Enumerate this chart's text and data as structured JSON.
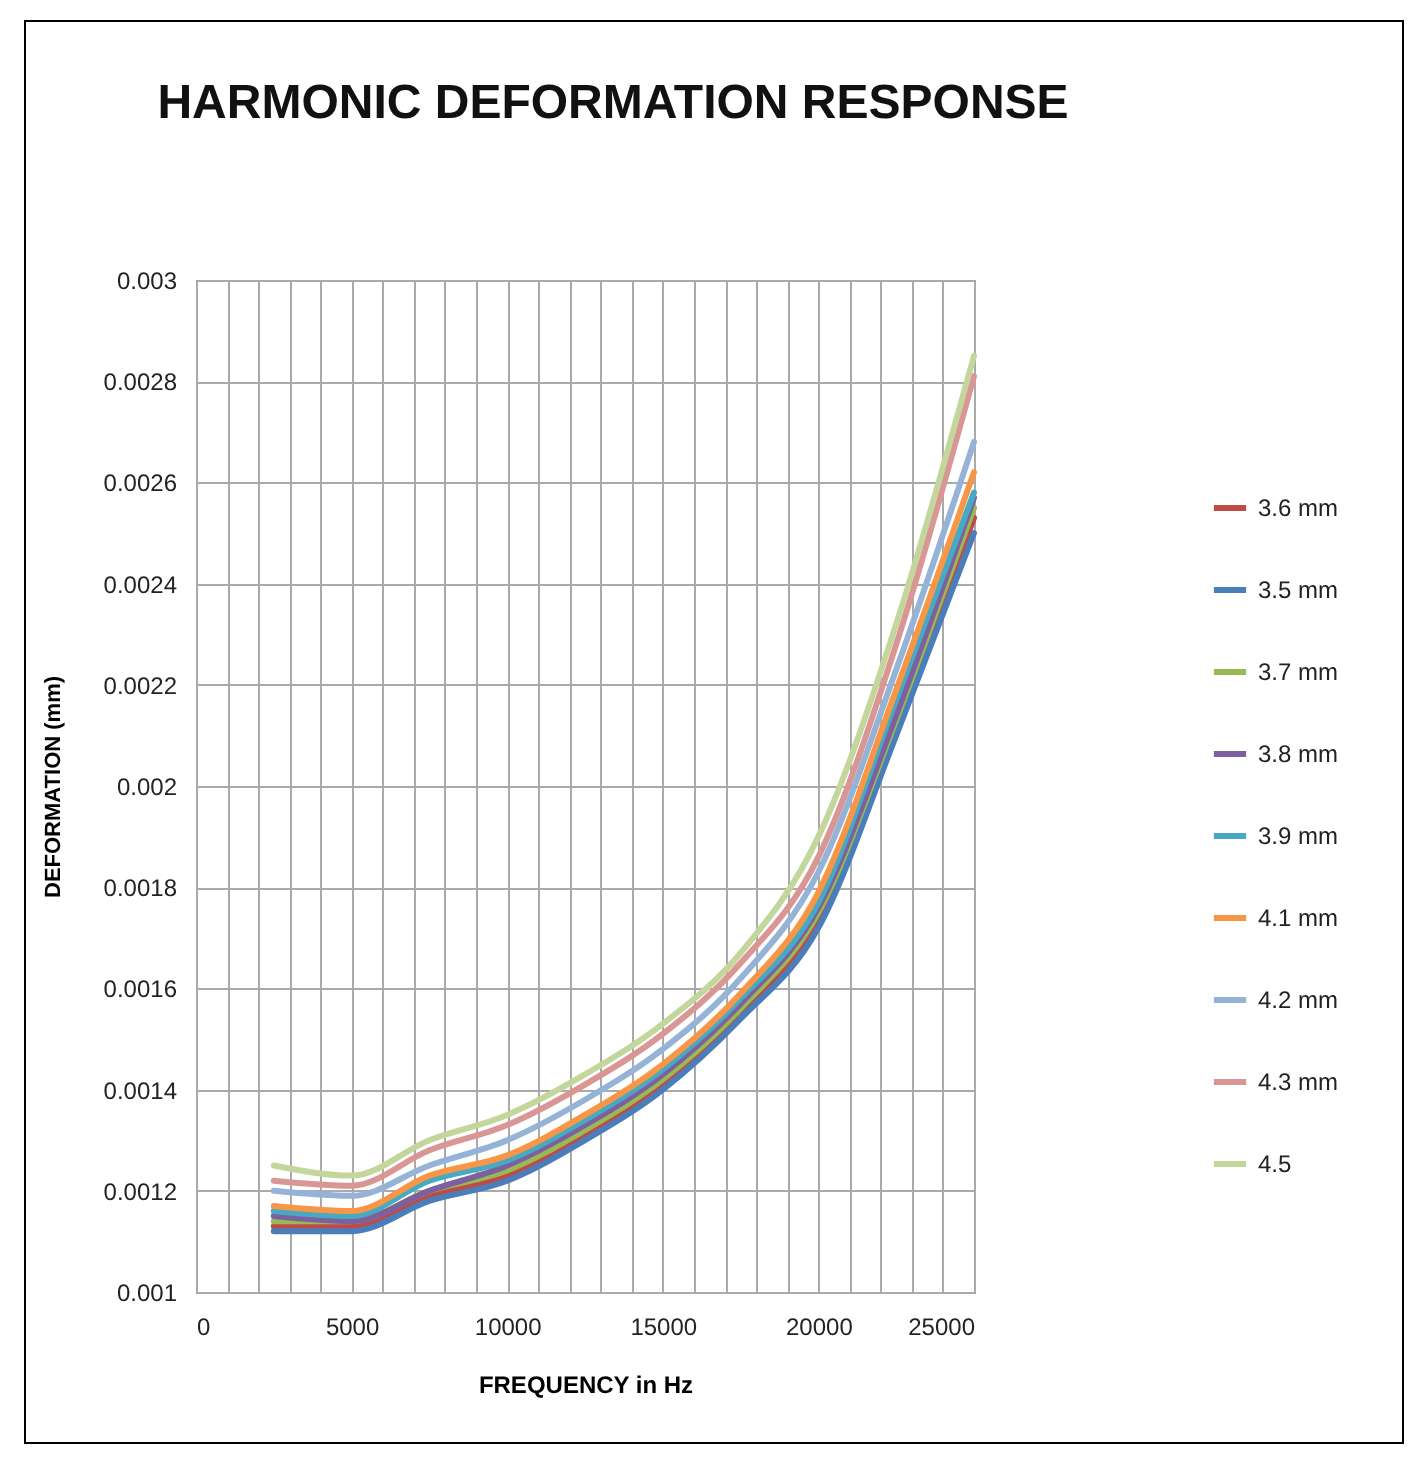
{
  "chart_data": {
    "type": "line",
    "title": "HARMONIC DEFORMATION RESPONSE",
    "xlabel": "FREQUENCY in Hz",
    "ylabel": "DEFORMATION (mm)",
    "x": [
      2500,
      5000,
      7500,
      10000,
      12500,
      15000,
      17500,
      20000,
      22500,
      25000
    ],
    "series": [
      {
        "name": "3.6 mm",
        "color": "#be4b48",
        "values": [
          0.00113,
          0.00113,
          0.00119,
          0.00123,
          0.00131,
          0.00141,
          0.00155,
          0.00174,
          0.00212,
          0.00253
        ]
      },
      {
        "name": "3.5 mm",
        "color": "#4a7ebb",
        "values": [
          0.00112,
          0.00112,
          0.00118,
          0.00122,
          0.0013,
          0.0014,
          0.00154,
          0.00172,
          0.0021,
          0.0025
        ]
      },
      {
        "name": "3.7 mm",
        "color": "#98b954",
        "values": [
          0.00114,
          0.00114,
          0.0012,
          0.00124,
          0.00132,
          0.00142,
          0.00156,
          0.00175,
          0.00213,
          0.00255
        ]
      },
      {
        "name": "3.8 mm",
        "color": "#7d60a0",
        "values": [
          0.00115,
          0.00114,
          0.0012,
          0.00125,
          0.00133,
          0.00143,
          0.00157,
          0.00176,
          0.00214,
          0.00257
        ]
      },
      {
        "name": "3.9 mm",
        "color": "#46aac5",
        "values": [
          0.00116,
          0.00115,
          0.00122,
          0.00126,
          0.00134,
          0.00144,
          0.00158,
          0.00177,
          0.00217,
          0.00258
        ]
      },
      {
        "name": "4.1 mm",
        "color": "#f79646",
        "values": [
          0.00117,
          0.00116,
          0.00123,
          0.00127,
          0.00135,
          0.00145,
          0.00159,
          0.00179,
          0.00219,
          0.00262
        ]
      },
      {
        "name": "4.2 mm",
        "color": "#95b3d7",
        "values": [
          0.0012,
          0.00119,
          0.00125,
          0.0013,
          0.00138,
          0.00148,
          0.00162,
          0.00183,
          0.00223,
          0.00268
        ]
      },
      {
        "name": "4.3 mm",
        "color": "#d99694",
        "values": [
          0.00122,
          0.00121,
          0.00128,
          0.00133,
          0.00141,
          0.00151,
          0.00165,
          0.00186,
          0.00228,
          0.00281
        ]
      },
      {
        "name": "4.5",
        "color": "#c3d69b",
        "values": [
          0.00125,
          0.00123,
          0.0013,
          0.00135,
          0.00143,
          0.00153,
          0.00167,
          0.0019,
          0.00232,
          0.00285
        ]
      }
    ],
    "xlim": [
      0,
      25000
    ],
    "xticks": [
      0,
      {
        "value": 1000,
        "label": null
      },
      {
        "value": 2000,
        "label": null
      },
      {
        "value": 3000,
        "label": null
      },
      {
        "value": 4000,
        "label": null
      },
      5000,
      {
        "value": 6000,
        "label": null
      },
      {
        "value": 7000,
        "label": null
      },
      {
        "value": 8000,
        "label": null
      },
      {
        "value": 9000,
        "label": null
      },
      10000,
      {
        "value": 11000,
        "label": null
      },
      {
        "value": 12000,
        "label": null
      },
      {
        "value": 13000,
        "label": null
      },
      {
        "value": 14000,
        "label": null
      },
      15000,
      {
        "value": 16000,
        "label": null
      },
      {
        "value": 17000,
        "label": null
      },
      {
        "value": 18000,
        "label": null
      },
      {
        "value": 19000,
        "label": null
      },
      20000,
      {
        "value": 21000,
        "label": null
      },
      {
        "value": 22000,
        "label": null
      },
      {
        "value": 23000,
        "label": null
      },
      {
        "value": 24000,
        "label": null
      },
      25000
    ],
    "ylim": [
      0.001,
      0.003
    ],
    "yticks": [
      0.001,
      0.0012,
      0.0014,
      0.0016,
      0.0018,
      0.002,
      0.0022,
      0.0024,
      0.0026,
      0.0028,
      0.003
    ],
    "grid": true,
    "legend": "right",
    "marker": "none",
    "line_style": "solid"
  }
}
